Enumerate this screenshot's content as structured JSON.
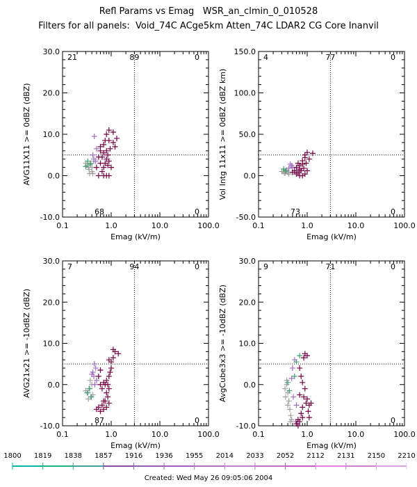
{
  "header": {
    "title": "Refl Params vs Emag   WSR_an_clmin_0_010528",
    "subtitle": "Filters for all panels:  Void_74C ACge5km Atten_74C LDAR2 CG Core Inanvil"
  },
  "footer": {
    "created": "Created: Wed May 26 09:05:06 2004"
  },
  "colorbar": {
    "labels": [
      "1800",
      "1819",
      "1838",
      "1857",
      "1916",
      "1936",
      "1955",
      "2014",
      "2033",
      "2052",
      "2112",
      "2131",
      "2150",
      "2210"
    ],
    "colors": [
      "#00b4a0",
      "#18b480",
      "#40a0a0",
      "#8050a0",
      "#9060b0",
      "#a060c0",
      "#b070c0",
      "#c080d0",
      "#c070c0",
      "#c060c0",
      "#e080e0",
      "#d080d0",
      "#e0a0e0",
      "#f0c0f0"
    ]
  },
  "chart_data": [
    {
      "type": "scatter",
      "xlabel": "Emag (kV/m)",
      "ylabel": "AVG11X11 >= 0dBZ (dBZ)",
      "xscale": "log",
      "xlim": [
        0.1,
        100.0
      ],
      "ylim": [
        -10.0,
        30.0
      ],
      "xticks": [
        "0.1",
        "1.0",
        "10.0",
        "100.0"
      ],
      "yticks": [
        "-10.0",
        "0.0",
        "10.0",
        "20.0",
        "30.0"
      ],
      "x_threshold": 3.0,
      "y_threshold": 5.0,
      "quadrant_counts": {
        "upper_left": "21",
        "upper_mid": "89",
        "upper_right": "0",
        "lower_mid": "68",
        "lower_right": "0"
      },
      "series": [
        {
          "color": "#a0a0a0",
          "points": [
            [
              0.32,
              2.5
            ],
            [
              0.35,
              1.5
            ],
            [
              0.38,
              3.0
            ],
            [
              0.4,
              2.0
            ],
            [
              0.42,
              0.5
            ],
            [
              0.36,
              0.5
            ],
            [
              0.44,
              3.5
            ],
            [
              0.3,
              3.0
            ],
            [
              0.34,
              2.0
            ],
            [
              0.4,
              1.0
            ]
          ]
        },
        {
          "color": "#40a070",
          "points": [
            [
              0.33,
              3.5
            ],
            [
              0.37,
              2.8
            ],
            [
              0.3,
              2.2
            ]
          ]
        },
        {
          "color": "#a070c0",
          "points": [
            [
              0.45,
              9.5
            ],
            [
              0.42,
              5.0
            ],
            [
              0.48,
              3.5
            ],
            [
              0.5,
              6.5
            ],
            [
              0.44,
              4.0
            ]
          ]
        },
        {
          "color": "#700040",
          "points": [
            [
              0.6,
              6.0
            ],
            [
              0.7,
              7.5
            ],
            [
              0.8,
              10.0
            ],
            [
              0.9,
              11.0
            ],
            [
              1.1,
              10.5
            ],
            [
              1.3,
              9.0
            ],
            [
              0.9,
              8.5
            ],
            [
              1.1,
              8.0
            ],
            [
              0.7,
              5.5
            ],
            [
              0.8,
              4.0
            ],
            [
              0.6,
              3.0
            ],
            [
              0.7,
              2.0
            ],
            [
              0.9,
              3.5
            ],
            [
              0.65,
              1.0
            ],
            [
              0.55,
              0.0
            ],
            [
              0.7,
              0.0
            ],
            [
              0.8,
              0.0
            ],
            [
              0.9,
              0.0
            ],
            [
              0.75,
              3.0
            ],
            [
              0.85,
              2.5
            ],
            [
              1.0,
              2.0
            ],
            [
              0.65,
              4.5
            ],
            [
              0.95,
              6.5
            ],
            [
              1.2,
              7.0
            ],
            [
              0.8,
              6.0
            ],
            [
              0.6,
              7.0
            ],
            [
              0.75,
              8.5
            ],
            [
              0.55,
              4.5
            ],
            [
              0.5,
              2.0
            ],
            [
              0.85,
              5.0
            ]
          ]
        }
      ]
    },
    {
      "type": "scatter",
      "xlabel": "Emag (kV/m)",
      "ylabel": "Vol Intg 11x11 >= 0dBZ (dBZ km)",
      "xscale": "log",
      "xlim": [
        0.1,
        100.0
      ],
      "ylim": [
        -50.0,
        150.0
      ],
      "xticks": [
        "0.1",
        "1.0",
        "10.0",
        "100.0"
      ],
      "yticks": [
        "-50.0",
        "0.0",
        "50.0",
        "100.0",
        "150.0"
      ],
      "x_threshold": 3.0,
      "y_threshold": 25.0,
      "quadrant_counts": {
        "upper_left": "4",
        "upper_mid": "77",
        "upper_right": "0",
        "lower_mid": "73",
        "lower_right": "0"
      },
      "series": [
        {
          "color": "#a0a0a0",
          "points": [
            [
              0.32,
              5.0
            ],
            [
              0.35,
              3.0
            ],
            [
              0.38,
              6.0
            ],
            [
              0.4,
              4.0
            ],
            [
              0.42,
              2.0
            ],
            [
              0.3,
              5.0
            ],
            [
              0.34,
              3.5
            ],
            [
              0.37,
              7.0
            ]
          ]
        },
        {
          "color": "#40a070",
          "points": [
            [
              0.33,
              8.0
            ],
            [
              0.36,
              5.5
            ]
          ]
        },
        {
          "color": "#a070c0",
          "points": [
            [
              0.45,
              14.0
            ],
            [
              0.5,
              10.0
            ],
            [
              0.42,
              9.0
            ],
            [
              0.48,
              12.0
            ]
          ]
        },
        {
          "color": "#700040",
          "points": [
            [
              0.6,
              10.0
            ],
            [
              0.7,
              12.0
            ],
            [
              0.8,
              18.0
            ],
            [
              0.9,
              25.0
            ],
            [
              1.0,
              28.0
            ],
            [
              1.3,
              27.0
            ],
            [
              0.9,
              22.0
            ],
            [
              0.8,
              14.0
            ],
            [
              0.7,
              8.0
            ],
            [
              0.65,
              4.0
            ],
            [
              0.6,
              2.0
            ],
            [
              0.7,
              0.0
            ],
            [
              0.8,
              0.0
            ],
            [
              0.9,
              2.0
            ],
            [
              1.0,
              6.0
            ],
            [
              0.75,
              6.0
            ],
            [
              0.85,
              9.0
            ],
            [
              0.55,
              6.0
            ],
            [
              0.5,
              4.0
            ],
            [
              0.95,
              15.0
            ],
            [
              1.1,
              20.0
            ],
            [
              0.65,
              15.0
            ]
          ]
        }
      ]
    },
    {
      "type": "scatter",
      "xlabel": "Emag (kV/m)",
      "ylabel": "AVG21x21 >= -10dBZ (dBZ)",
      "xscale": "log",
      "xlim": [
        0.1,
        100.0
      ],
      "ylim": [
        -10.0,
        30.0
      ],
      "xticks": [
        "0.1",
        "1.0",
        "10.0",
        "100.0"
      ],
      "yticks": [
        "-10.0",
        "0.0",
        "10.0",
        "20.0",
        "30.0"
      ],
      "x_threshold": 3.0,
      "y_threshold": 5.0,
      "quadrant_counts": {
        "upper_left": "7",
        "upper_mid": "94",
        "upper_right": "0",
        "lower_mid": "87",
        "lower_right": "0"
      },
      "series": [
        {
          "color": "#a0a0a0",
          "points": [
            [
              0.32,
              -2.0
            ],
            [
              0.35,
              -1.0
            ],
            [
              0.38,
              -3.0
            ],
            [
              0.4,
              0.0
            ],
            [
              0.42,
              -2.5
            ],
            [
              0.3,
              -1.5
            ],
            [
              0.34,
              -3.5
            ],
            [
              0.37,
              1.0
            ]
          ]
        },
        {
          "color": "#40a070",
          "points": [
            [
              0.33,
              -2.0
            ],
            [
              0.36,
              -1.0
            ],
            [
              0.39,
              -3.0
            ]
          ]
        },
        {
          "color": "#a070c0",
          "points": [
            [
              0.45,
              5.0
            ],
            [
              0.42,
              3.0
            ],
            [
              0.48,
              4.0
            ],
            [
              0.44,
              2.0
            ],
            [
              0.5,
              1.0
            ],
            [
              0.46,
              0.0
            ],
            [
              0.4,
              2.5
            ]
          ]
        },
        {
          "color": "#700040",
          "points": [
            [
              0.5,
              -6.0
            ],
            [
              0.55,
              -5.5
            ],
            [
              0.6,
              -6.5
            ],
            [
              0.65,
              -5.0
            ],
            [
              0.7,
              -6.0
            ],
            [
              0.75,
              -4.0
            ],
            [
              0.8,
              -2.0
            ],
            [
              0.85,
              0.0
            ],
            [
              0.9,
              2.0
            ],
            [
              1.0,
              4.0
            ],
            [
              1.1,
              6.5
            ],
            [
              1.2,
              8.0
            ],
            [
              1.4,
              7.5
            ],
            [
              0.9,
              6.0
            ],
            [
              1.0,
              5.5
            ],
            [
              0.8,
              1.0
            ],
            [
              0.7,
              0.5
            ],
            [
              0.65,
              -1.0
            ],
            [
              0.6,
              0.0
            ],
            [
              0.75,
              0.0
            ],
            [
              0.85,
              -3.0
            ],
            [
              0.7,
              -4.0
            ],
            [
              0.9,
              -1.0
            ],
            [
              0.55,
              2.0
            ],
            [
              0.6,
              3.5
            ],
            [
              1.1,
              8.5
            ],
            [
              0.95,
              3.0
            ],
            [
              0.8,
              -5.5
            ],
            [
              0.9,
              -4.5
            ]
          ]
        }
      ]
    },
    {
      "type": "scatter",
      "xlabel": "Emag (kV/m)",
      "ylabel": "AvgCube3x3 >= -10dBZ (dBZ)",
      "xscale": "log",
      "xlim": [
        0.1,
        100.0
      ],
      "ylim": [
        -10.0,
        30.0
      ],
      "xticks": [
        "0.1",
        "1.0",
        "10.0",
        "100.0"
      ],
      "yticks": [
        "-10.0",
        "0.0",
        "10.0",
        "20.0",
        "30.0"
      ],
      "x_threshold": 3.0,
      "y_threshold": 5.0,
      "quadrant_counts": {
        "upper_left": "9",
        "upper_mid": "71",
        "upper_right": "0",
        "lower_mid": "",
        "lower_right": "0"
      },
      "series": [
        {
          "color": "#a0a0a0",
          "points": [
            [
              0.35,
              -1.0
            ],
            [
              0.38,
              0.0
            ],
            [
              0.4,
              -2.0
            ],
            [
              0.42,
              -4.0
            ],
            [
              0.44,
              -6.0
            ],
            [
              0.46,
              -7.5
            ],
            [
              0.48,
              -8.5
            ],
            [
              0.36,
              -3.0
            ],
            [
              0.4,
              -5.0
            ],
            [
              0.45,
              -9.0
            ],
            [
              0.38,
              1.0
            ]
          ]
        },
        {
          "color": "#40a070",
          "points": [
            [
              0.4,
              0.5
            ],
            [
              0.55,
              2.0
            ],
            [
              0.6,
              5.5
            ],
            [
              0.7,
              7.0
            ],
            [
              0.43,
              -1.5
            ]
          ]
        },
        {
          "color": "#a070c0",
          "points": [
            [
              0.5,
              4.0
            ],
            [
              0.55,
              6.0
            ],
            [
              0.48,
              1.5
            ],
            [
              0.52,
              -3.0
            ],
            [
              0.6,
              -5.0
            ],
            [
              0.58,
              -9.0
            ],
            [
              0.62,
              -9.5
            ]
          ]
        },
        {
          "color": "#700040",
          "points": [
            [
              0.6,
              -9.5
            ],
            [
              0.65,
              -8.5
            ],
            [
              0.7,
              -9.0
            ],
            [
              0.75,
              -7.0
            ],
            [
              0.8,
              -5.5
            ],
            [
              0.85,
              -3.0
            ],
            [
              0.9,
              -1.0
            ],
            [
              1.0,
              -3.5
            ],
            [
              1.1,
              -5.0
            ],
            [
              1.2,
              -4.5
            ],
            [
              0.9,
              7.5
            ],
            [
              1.0,
              7.0
            ],
            [
              0.85,
              6.5
            ],
            [
              0.7,
              4.0
            ],
            [
              0.75,
              2.0
            ],
            [
              0.8,
              0.5
            ],
            [
              0.95,
              -4.5
            ],
            [
              1.05,
              -6.5
            ],
            [
              0.7,
              -2.5
            ],
            [
              1.1,
              -8.0
            ],
            [
              0.8,
              -8.0
            ],
            [
              0.65,
              -10.0
            ]
          ]
        }
      ]
    }
  ]
}
